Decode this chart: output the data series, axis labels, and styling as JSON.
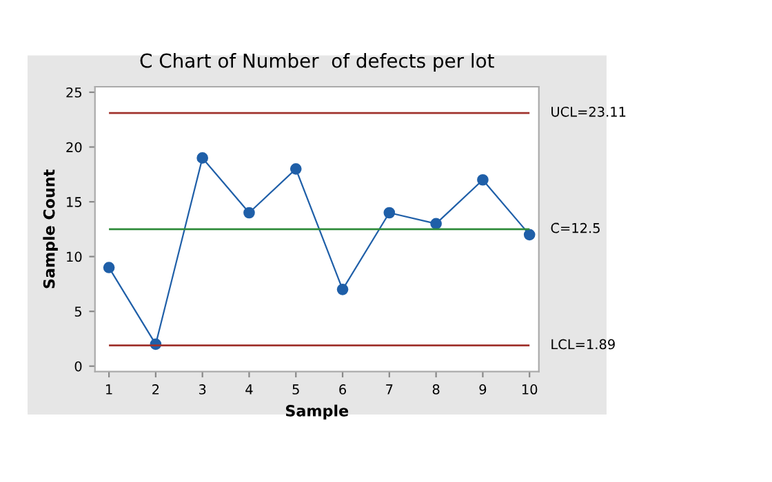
{
  "chart_data": {
    "type": "line",
    "title": "C Chart of Number  of defects per lot",
    "xlabel": "Sample",
    "ylabel": "Sample Count",
    "x": [
      1,
      2,
      3,
      4,
      5,
      6,
      7,
      8,
      9,
      10
    ],
    "series": [
      {
        "color": "#1f5fa8",
        "values": [
          9,
          2,
          19,
          14,
          18,
          7,
          14,
          13,
          17,
          12
        ]
      }
    ],
    "marker": "circle",
    "line_style": "solid",
    "xlim": [
      0.7,
      10.2
    ],
    "xticks": [
      1,
      2,
      3,
      4,
      5,
      6,
      7,
      8,
      9,
      10
    ],
    "ylim": [
      -0.5,
      25.5
    ],
    "yticks": [
      0,
      5,
      10,
      15,
      20,
      25
    ],
    "ref_lines": [
      {
        "axis": "y",
        "value": 23.11,
        "label": "UCL=23.11",
        "color": "#a0322d"
      },
      {
        "axis": "y",
        "value": 12.5,
        "label": "C̄=12.5",
        "color": "#2e8b3a"
      },
      {
        "axis": "y",
        "value": 1.89,
        "label": "LCL=1.89",
        "color": "#a0322d"
      }
    ],
    "grid": false,
    "legend": false
  }
}
